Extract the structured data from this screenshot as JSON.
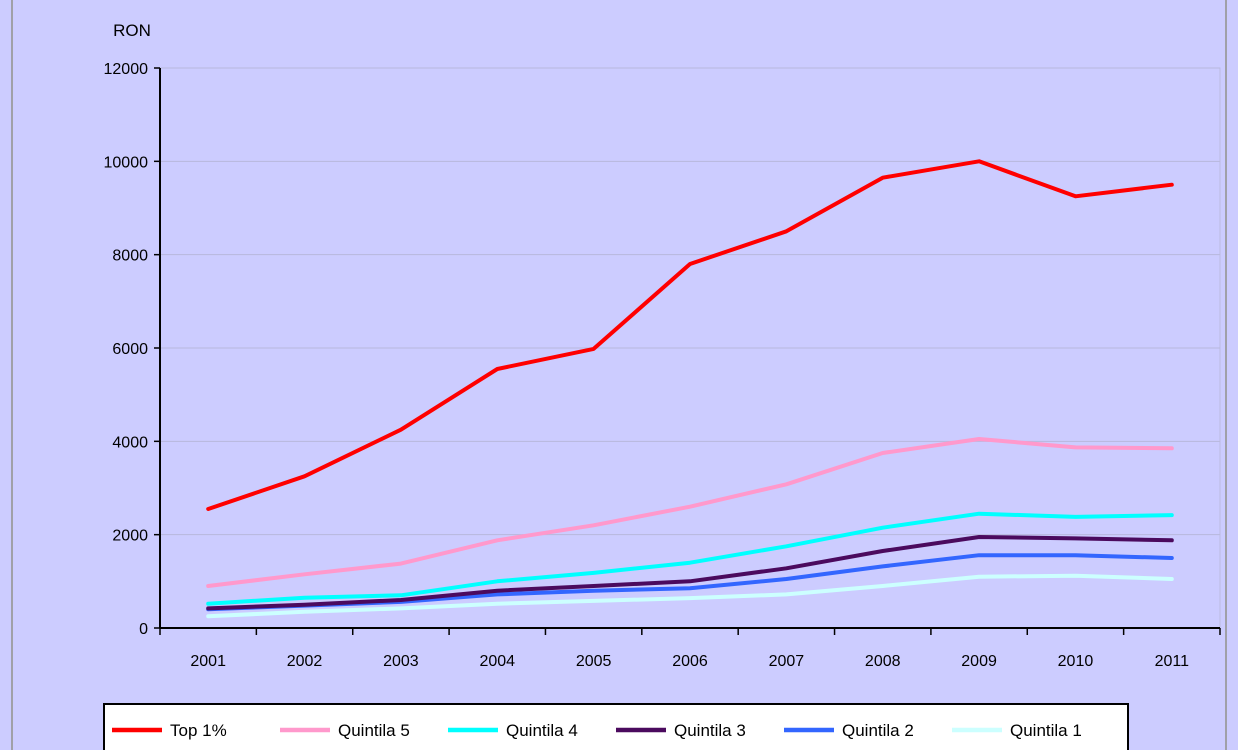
{
  "chart_data": {
    "type": "line",
    "title": "",
    "xlabel": "",
    "ylabel": "RON",
    "ylim": [
      0,
      12000
    ],
    "yticks": [
      0,
      2000,
      4000,
      6000,
      8000,
      10000,
      12000
    ],
    "grid": "horizontal",
    "legend_position": "bottom",
    "categories": [
      "2001",
      "2002",
      "2003",
      "2004",
      "2005",
      "2006",
      "2007",
      "2008",
      "2009",
      "2010",
      "2011"
    ],
    "series": [
      {
        "name": "Top 1%",
        "color": "#ff0000",
        "values": [
          2550,
          3250,
          4250,
          5550,
          5980,
          7800,
          8500,
          9650,
          10000,
          9250,
          9500
        ]
      },
      {
        "name": "Quintila 5",
        "color": "#ff99cc",
        "values": [
          900,
          1150,
          1380,
          1880,
          2200,
          2600,
          3080,
          3750,
          4050,
          3870,
          3850
        ]
      },
      {
        "name": "Quintila 4",
        "color": "#00ffff",
        "values": [
          520,
          650,
          700,
          1000,
          1180,
          1400,
          1750,
          2150,
          2450,
          2380,
          2420
        ]
      },
      {
        "name": "Quintila 3",
        "color": "#4b0a5e",
        "values": [
          420,
          500,
          600,
          800,
          900,
          1000,
          1280,
          1650,
          1950,
          1920,
          1880
        ]
      },
      {
        "name": "Quintila 2",
        "color": "#3366ff",
        "values": [
          400,
          480,
          560,
          720,
          800,
          850,
          1050,
          1320,
          1560,
          1560,
          1500
        ]
      },
      {
        "name": "Quintila 1",
        "color": "#ccffff",
        "values": [
          250,
          350,
          420,
          520,
          580,
          640,
          720,
          900,
          1100,
          1120,
          1050
        ]
      }
    ]
  }
}
